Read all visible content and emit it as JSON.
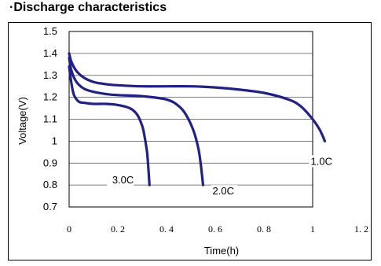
{
  "title": "·Discharge characteristics",
  "chart_data": {
    "type": "line",
    "xlabel": "Time(h)",
    "ylabel": "Voltage(V)",
    "xlim": [
      0,
      1.2
    ],
    "ylim": [
      0.7,
      1.5
    ],
    "x_ticks": [
      0,
      0.2,
      0.4,
      0.6,
      0.8,
      1,
      1.2
    ],
    "x_tick_labels": [
      "0",
      "0. 2",
      "0. 4",
      "0. 6",
      "0. 8",
      "1",
      "1. 2"
    ],
    "y_ticks": [
      0.7,
      0.8,
      0.9,
      1.0,
      1.1,
      1.2,
      1.3,
      1.4,
      1.5
    ],
    "y_tick_labels": [
      "0.7",
      "0.8",
      "0.9",
      "1",
      "1.1",
      "1.2",
      "1.3",
      "1.4",
      "1.5"
    ],
    "grid": "horizontal",
    "line_color": "#1f1f8f",
    "series": [
      {
        "name": "1.0C",
        "x": [
          0,
          0.01,
          0.03,
          0.06,
          0.1,
          0.15,
          0.2,
          0.3,
          0.4,
          0.5,
          0.6,
          0.7,
          0.8,
          0.9,
          0.95,
          1.0,
          1.03,
          1.05
        ],
        "y": [
          1.4,
          1.36,
          1.32,
          1.29,
          1.27,
          1.26,
          1.255,
          1.25,
          1.25,
          1.25,
          1.245,
          1.235,
          1.22,
          1.19,
          1.16,
          1.1,
          1.05,
          1.0
        ]
      },
      {
        "name": "2.0C",
        "x": [
          0,
          0.01,
          0.03,
          0.06,
          0.1,
          0.15,
          0.2,
          0.3,
          0.4,
          0.45,
          0.48,
          0.51,
          0.53,
          0.54,
          0.545,
          0.55
        ],
        "y": [
          1.38,
          1.32,
          1.27,
          1.24,
          1.225,
          1.215,
          1.21,
          1.205,
          1.19,
          1.16,
          1.12,
          1.05,
          0.97,
          0.9,
          0.85,
          0.8
        ]
      },
      {
        "name": "3.0C",
        "x": [
          0,
          0.01,
          0.02,
          0.04,
          0.06,
          0.1,
          0.15,
          0.2,
          0.25,
          0.28,
          0.3,
          0.31,
          0.32,
          0.325,
          0.33
        ],
        "y": [
          1.34,
          1.26,
          1.21,
          1.18,
          1.175,
          1.17,
          1.17,
          1.165,
          1.15,
          1.12,
          1.07,
          1.02,
          0.95,
          0.88,
          0.8
        ]
      }
    ]
  }
}
